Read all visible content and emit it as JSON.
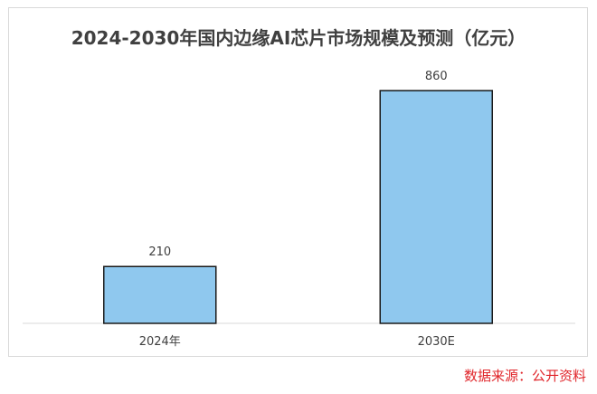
{
  "chart_data": {
    "type": "bar",
    "title": "2024-2030年国内边缘AI芯片市场规模及预测（亿元）",
    "categories": [
      "2024年",
      "2030E"
    ],
    "values": [
      210,
      860
    ],
    "data_labels": [
      "210",
      "860"
    ],
    "ylim": [
      0,
      1000
    ],
    "xlabel": "",
    "ylabel": "",
    "grid": false,
    "legend": "none",
    "bar_color": "#8fc8ee",
    "bar_border_color": "#1a1a1a"
  },
  "source_note": "数据来源：公开资料",
  "colors": {
    "title": "#404040",
    "axis_line": "#d9d9d9",
    "source_note": "#e0262b"
  }
}
